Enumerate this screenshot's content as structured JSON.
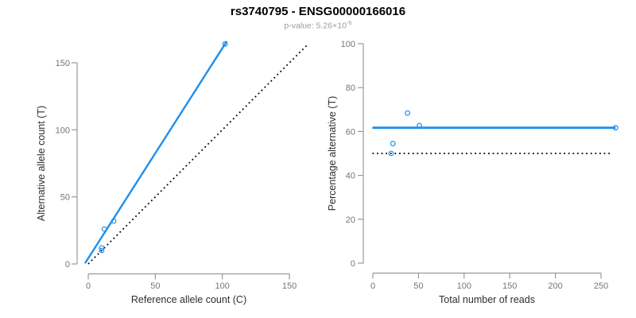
{
  "figure": {
    "title": "rs3740795 - ENSG00000166016",
    "subtitle": {
      "text": "p-value: 5.26×10",
      "exponent": "-6"
    }
  },
  "colors": {
    "fit_line": "#1e8fee",
    "reference_line": "#000000",
    "point_stroke": "#1e8fee",
    "axis": "#999999",
    "tick_label": "#757575",
    "axis_title": "#2e2e2e",
    "title": "#000000",
    "subtitle": "#9c9c9c"
  },
  "chart_data": [
    {
      "type": "scatter",
      "panel": "left",
      "xlabel": "Reference allele count (C)",
      "ylabel": "Alternative allele count (T)",
      "xticks": [
        0,
        50,
        100,
        150
      ],
      "yticks": [
        0,
        50,
        100,
        150
      ],
      "xlim": [
        -6,
        164
      ],
      "ylim": [
        -6,
        167
      ],
      "grid": false,
      "points": [
        {
          "x": 102,
          "y": 164
        },
        {
          "x": 19,
          "y": 32
        },
        {
          "x": 12,
          "y": 26
        },
        {
          "x": 10,
          "y": 12
        },
        {
          "x": 10,
          "y": 10
        }
      ],
      "fit_line": {
        "x1": -2.4,
        "y1": 0.5,
        "x2": 103.3,
        "y2": 166,
        "style": "solid"
      },
      "reference_line": {
        "x1": 0,
        "y1": 0,
        "x2": 163.5,
        "y2": 163.5,
        "style": "dotted",
        "meaning": "identity y = x"
      }
    },
    {
      "type": "scatter",
      "panel": "right",
      "xlabel": "Total number of reads",
      "ylabel": "Percentage alternative (T)",
      "xticks": [
        0,
        50,
        100,
        150,
        200,
        250
      ],
      "yticks": [
        0,
        20,
        40,
        60,
        80,
        100
      ],
      "xlim": [
        -8,
        270
      ],
      "ylim": [
        -8,
        104
      ],
      "grid": false,
      "points": [
        {
          "x": 266,
          "y": 61.7
        },
        {
          "x": 51,
          "y": 62.7
        },
        {
          "x": 38,
          "y": 68.4
        },
        {
          "x": 22,
          "y": 54.5
        },
        {
          "x": 20,
          "y": 50
        }
      ],
      "fit_line": {
        "x1": -0.5,
        "y1": 61.7,
        "x2": 266,
        "y2": 61.7,
        "style": "solid",
        "meaning": "weighted mean percentage"
      },
      "reference_line": {
        "x1": -0.5,
        "y1": 50,
        "x2": 260,
        "y2": 50,
        "style": "dotted",
        "meaning": "null expectation 50%"
      }
    }
  ]
}
